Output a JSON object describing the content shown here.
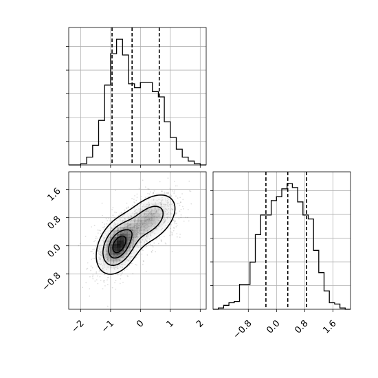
{
  "chart_data": [
    {
      "type": "histogram",
      "panel": "x-marginal",
      "x_range": [
        -2.4,
        2.2
      ],
      "y_range": [
        0,
        1
      ],
      "bins": [
        {
          "x0": -2.4,
          "x1": -2.2,
          "v": 0.0
        },
        {
          "x0": -2.2,
          "x1": -2.0,
          "v": 0.0
        },
        {
          "x0": -2.0,
          "x1": -1.8,
          "v": 0.01
        },
        {
          "x0": -1.8,
          "x1": -1.6,
          "v": 0.06
        },
        {
          "x0": -1.6,
          "x1": -1.4,
          "v": 0.15
        },
        {
          "x0": -1.4,
          "x1": -1.2,
          "v": 0.34
        },
        {
          "x0": -1.2,
          "x1": -1.0,
          "v": 0.61
        },
        {
          "x0": -1.0,
          "x1": -0.8,
          "v": 0.85
        },
        {
          "x0": -0.8,
          "x1": -0.6,
          "v": 0.96
        },
        {
          "x0": -0.6,
          "x1": -0.4,
          "v": 0.84
        },
        {
          "x0": -0.4,
          "x1": -0.2,
          "v": 0.62
        },
        {
          "x0": -0.2,
          "x1": 0.0,
          "v": 0.59
        },
        {
          "x0": 0.0,
          "x1": 0.2,
          "v": 0.63
        },
        {
          "x0": 0.2,
          "x1": 0.4,
          "v": 0.63
        },
        {
          "x0": 0.4,
          "x1": 0.6,
          "v": 0.56
        },
        {
          "x0": 0.6,
          "x1": 0.8,
          "v": 0.52
        },
        {
          "x0": 0.8,
          "x1": 1.0,
          "v": 0.33
        },
        {
          "x0": 1.0,
          "x1": 1.2,
          "v": 0.21
        },
        {
          "x0": 1.2,
          "x1": 1.4,
          "v": 0.12
        },
        {
          "x0": 1.4,
          "x1": 1.6,
          "v": 0.06
        },
        {
          "x0": 1.6,
          "x1": 1.8,
          "v": 0.03
        },
        {
          "x0": 1.8,
          "x1": 2.0,
          "v": 0.01
        },
        {
          "x0": 2.0,
          "x1": 2.2,
          "v": 0.0
        }
      ],
      "quantile_lines": [
        -0.95,
        -0.28,
        0.63
      ],
      "grid": true
    },
    {
      "type": "heatmap",
      "panel": "joint",
      "x_range": [
        -2.4,
        2.2
      ],
      "y_range": [
        -1.8,
        2.1
      ],
      "x_ticks": [
        "−2",
        "−1",
        "0",
        "1",
        "2"
      ],
      "x_tick_values": [
        -2,
        -1,
        0,
        1,
        2
      ],
      "y_ticks": [
        "−0.8",
        "0.0",
        "0.8",
        "1.6"
      ],
      "y_tick_values": [
        -0.8,
        0.0,
        0.8,
        1.6
      ],
      "modes": [
        {
          "x": -0.75,
          "y": 0.0
        },
        {
          "x": 0.3,
          "y": 0.75
        }
      ],
      "density_contours": 4,
      "grid": true
    },
    {
      "type": "histogram",
      "panel": "y-marginal",
      "x_range": [
        -1.8,
        2.1
      ],
      "y_range": [
        0,
        1
      ],
      "x_ticks": [
        "−0.8",
        "0.0",
        "0.8",
        "1.6"
      ],
      "x_tick_values": [
        -0.8,
        0.0,
        0.8,
        1.6
      ],
      "bins": [
        {
          "x0": -1.8,
          "x1": -1.65,
          "v": 0.0
        },
        {
          "x0": -1.65,
          "x1": -1.5,
          "v": 0.01
        },
        {
          "x0": -1.5,
          "x1": -1.35,
          "v": 0.03
        },
        {
          "x0": -1.35,
          "x1": -1.2,
          "v": 0.05
        },
        {
          "x0": -1.2,
          "x1": -1.05,
          "v": 0.06
        },
        {
          "x0": -1.05,
          "x1": -0.9,
          "v": 0.19
        },
        {
          "x0": -0.9,
          "x1": -0.75,
          "v": 0.19
        },
        {
          "x0": -0.75,
          "x1": -0.6,
          "v": 0.36
        },
        {
          "x0": -0.6,
          "x1": -0.45,
          "v": 0.57
        },
        {
          "x0": -0.45,
          "x1": -0.3,
          "v": 0.72
        },
        {
          "x0": -0.3,
          "x1": -0.15,
          "v": 0.72
        },
        {
          "x0": -0.15,
          "x1": 0.0,
          "v": 0.83
        },
        {
          "x0": 0.0,
          "x1": 0.15,
          "v": 0.86
        },
        {
          "x0": 0.15,
          "x1": 0.3,
          "v": 0.92
        },
        {
          "x0": 0.3,
          "x1": 0.45,
          "v": 0.96
        },
        {
          "x0": 0.45,
          "x1": 0.6,
          "v": 0.93
        },
        {
          "x0": 0.6,
          "x1": 0.75,
          "v": 0.82
        },
        {
          "x0": 0.75,
          "x1": 0.9,
          "v": 0.72
        },
        {
          "x0": 0.9,
          "x1": 1.05,
          "v": 0.69
        },
        {
          "x0": 1.05,
          "x1": 1.2,
          "v": 0.45
        },
        {
          "x0": 1.2,
          "x1": 1.35,
          "v": 0.28
        },
        {
          "x0": 1.35,
          "x1": 1.5,
          "v": 0.14
        },
        {
          "x0": 1.5,
          "x1": 1.65,
          "v": 0.05
        },
        {
          "x0": 1.65,
          "x1": 1.8,
          "v": 0.04
        },
        {
          "x0": 1.8,
          "x1": 1.95,
          "v": 0.01
        },
        {
          "x0": 1.95,
          "x1": 2.1,
          "v": 0.0
        }
      ],
      "quantile_lines": [
        -0.3,
        0.32,
        0.85
      ],
      "grid": true
    }
  ]
}
